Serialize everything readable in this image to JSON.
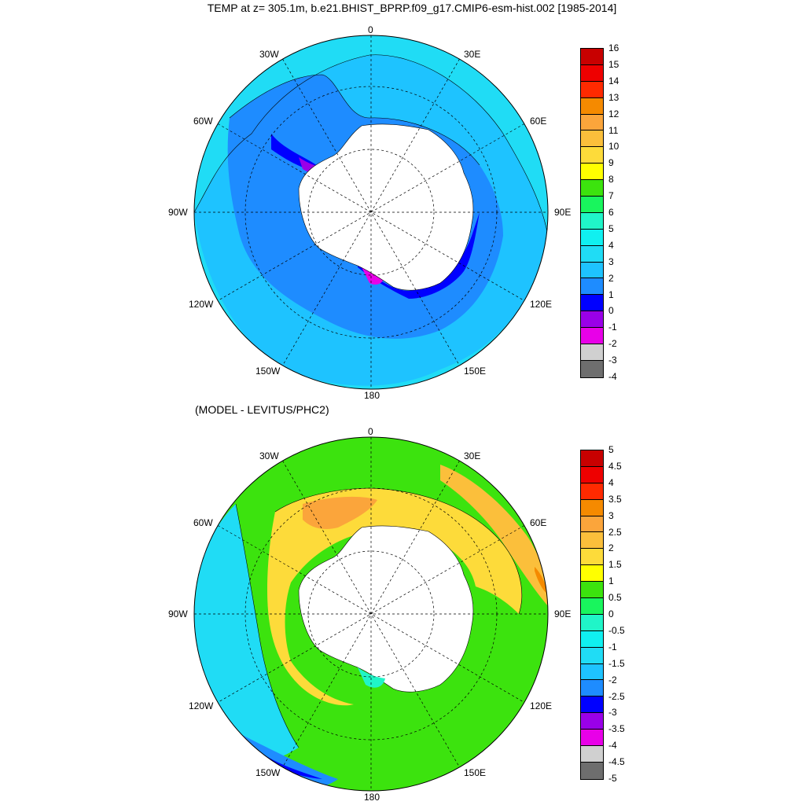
{
  "title": "TEMP at z= 305.1m, b.e21.BHIST_BPRP.f09_g17.CMIP6-esm-hist.002 [1985-2014]",
  "subtitle": "(MODEL - LEVITUS/PHC2)",
  "lon_labels": [
    "0",
    "30E",
    "60E",
    "90E",
    "120E",
    "150E",
    "180",
    "150W",
    "120W",
    "90W",
    "60W",
    "30W"
  ],
  "colorbar_top": {
    "ticks": [
      "16",
      "15",
      "14",
      "13",
      "12",
      "11",
      "10",
      "9",
      "8",
      "7",
      "6",
      "5",
      "4",
      "3",
      "2",
      "1",
      "0",
      "-1",
      "-2",
      "-3",
      "-4"
    ],
    "colors": [
      "#c80000",
      "#ee0000",
      "#ff2a00",
      "#f58a00",
      "#fba53b",
      "#fbbf3b",
      "#fddb3a",
      "#ffff00",
      "#3ce30e",
      "#19f55d",
      "#20f5c8",
      "#10f0f0",
      "#20dcf5",
      "#1ec3ff",
      "#1e8cff",
      "#0000ff",
      "#9a00e8",
      "#e800e8",
      "#d0d0d0",
      "#6e6e6e"
    ]
  },
  "colorbar_bottom": {
    "ticks": [
      "5",
      "4.5",
      "4",
      "3.5",
      "3",
      "2.5",
      "2",
      "1.5",
      "1",
      "0.5",
      "0",
      "-0.5",
      "-1",
      "-1.5",
      "-2",
      "-2.5",
      "-3",
      "-3.5",
      "-4",
      "-4.5",
      "-5"
    ],
    "colors": [
      "#c80000",
      "#ee0000",
      "#ff2a00",
      "#f58a00",
      "#fba53b",
      "#fbbf3b",
      "#fddb3a",
      "#ffff00",
      "#3ce30e",
      "#19f55d",
      "#20f5c8",
      "#10f0f0",
      "#20dcf5",
      "#1ec3ff",
      "#1e8cff",
      "#0000ff",
      "#9a00e8",
      "#e800e8",
      "#d0d0d0",
      "#6e6e6e"
    ]
  }
}
